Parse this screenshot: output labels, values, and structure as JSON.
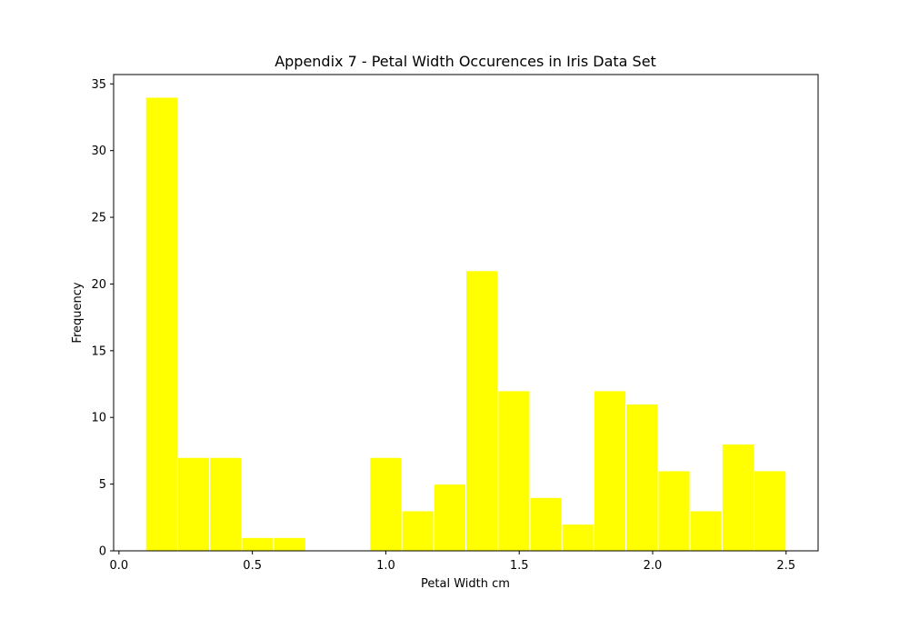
{
  "chart_data": {
    "type": "bar",
    "title": "Appendix 7 - Petal Width Occurences in Iris Data Set",
    "xlabel": "Petal Width cm",
    "ylabel": "Frequency",
    "xlim": [
      -0.02,
      2.62
    ],
    "ylim": [
      0,
      35.7
    ],
    "xticks": [
      0.0,
      0.5,
      1.0,
      1.5,
      2.0,
      2.5
    ],
    "xtick_labels": [
      "0.0",
      "0.5",
      "1.0",
      "1.5",
      "2.0",
      "2.5"
    ],
    "yticks": [
      0,
      5,
      10,
      15,
      20,
      25,
      30,
      35
    ],
    "ytick_labels": [
      "0",
      "5",
      "10",
      "15",
      "20",
      "25",
      "30",
      "35"
    ],
    "bin_edges": [
      0.1,
      0.22,
      0.34,
      0.46,
      0.58,
      0.7,
      0.82,
      0.94,
      1.06,
      1.18,
      1.3,
      1.42,
      1.54,
      1.66,
      1.78,
      1.9,
      2.02,
      2.14,
      2.26,
      2.38,
      2.5
    ],
    "values": [
      34,
      7,
      7,
      1,
      1,
      0,
      0,
      7,
      3,
      5,
      21,
      12,
      4,
      2,
      12,
      11,
      6,
      3,
      8,
      6
    ],
    "bar_color": "#ffff00",
    "bar_edge_color": "#ffffff",
    "grid": false,
    "legend": "none"
  }
}
